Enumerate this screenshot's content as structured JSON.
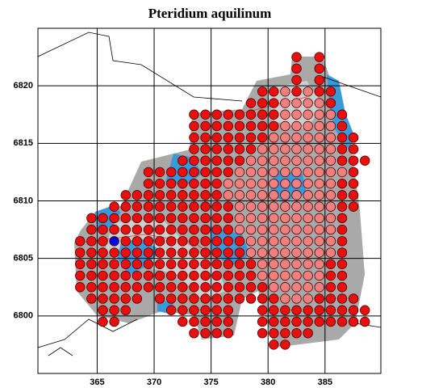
{
  "chart_data": {
    "type": "scatter",
    "title": "Pteridium aquilinum",
    "xlim": [
      359.8,
      389.9
    ],
    "ylim": [
      6795,
      6825
    ],
    "xticks": [
      365,
      370,
      375,
      380,
      385
    ],
    "yticks": [
      6800,
      6805,
      6810,
      6815,
      6820
    ],
    "grid": true,
    "series": [
      {
        "color": "#e8100f",
        "rows": [
          {
            "y": 6822.5,
            "x": [
              382.5,
              384.5
            ]
          },
          {
            "y": 6821.5,
            "x": [
              382.5,
              384.5
            ]
          },
          {
            "y": 6820.5,
            "x": [
              382.5,
              384.5
            ]
          },
          {
            "y": 6819.5,
            "x": [
              379.5,
              380.5,
              382.5,
              384.5,
              385.5
            ]
          },
          {
            "y": 6818.5,
            "x": [
              378.5,
              379.5,
              380.5,
              385.5
            ]
          },
          {
            "y": 6817.5,
            "x": [
              373.5,
              374.5,
              375.5,
              376.5,
              377.5,
              378.5,
              379.5,
              380.5,
              386.5
            ]
          },
          {
            "y": 6816.5,
            "x": [
              373.5,
              374.5,
              375.5,
              376.5,
              377.5,
              378.5,
              379.5,
              380.5,
              386.5
            ]
          },
          {
            "y": 6815.5,
            "x": [
              373.5,
              374.5,
              375.5,
              376.5,
              377.5,
              378.5,
              379.5,
              386.5,
              387.5
            ]
          },
          {
            "y": 6814.5,
            "x": [
              373.5,
              374.5,
              375.5,
              376.5,
              377.5,
              378.5,
              386.5,
              387.5
            ]
          },
          {
            "y": 6813.5,
            "x": [
              372.5,
              373.5,
              374.5,
              375.5,
              376.5,
              377.5,
              386.5,
              387.5,
              388.5
            ]
          },
          {
            "y": 6812.5,
            "x": [
              369.5,
              370.5,
              371.5,
              372.5,
              373.5,
              374.5,
              375.5,
              376.5,
              387.5
            ]
          },
          {
            "y": 6811.5,
            "x": [
              369.5,
              370.5,
              371.5,
              372.5,
              373.5,
              374.5,
              375.5,
              386.5,
              387.5
            ]
          },
          {
            "y": 6810.5,
            "x": [
              367.5,
              368.5,
              369.5,
              370.5,
              371.5,
              372.5,
              373.5,
              374.5,
              375.5,
              386.5,
              387.5
            ]
          },
          {
            "y": 6809.5,
            "x": [
              366.5,
              367.5,
              368.5,
              369.5,
              370.5,
              371.5,
              372.5,
              373.5,
              374.5,
              375.5,
              376.5,
              386.5,
              387.5
            ]
          },
          {
            "y": 6808.5,
            "x": [
              364.5,
              365.5,
              366.5,
              367.5,
              368.5,
              369.5,
              370.5,
              371.5,
              372.5,
              373.5,
              374.5,
              375.5,
              376.5,
              386.5
            ]
          },
          {
            "y": 6807.5,
            "x": [
              364.5,
              365.5,
              366.5,
              367.5,
              368.5,
              369.5,
              370.5,
              371.5,
              372.5,
              373.5,
              374.5,
              375.5,
              376.5,
              386.5
            ]
          },
          {
            "y": 6806.5,
            "x": [
              363.5,
              364.5,
              365.5,
              367.5,
              368.5,
              369.5,
              370.5,
              371.5,
              372.5,
              373.5,
              374.5,
              375.5,
              376.5,
              377.5,
              386.5
            ]
          },
          {
            "y": 6805.5,
            "x": [
              363.5,
              364.5,
              365.5,
              366.5,
              367.5,
              368.5,
              369.5,
              370.5,
              371.5,
              372.5,
              373.5,
              374.5,
              375.5,
              376.5,
              377.5,
              386.5
            ]
          },
          {
            "y": 6804.5,
            "x": [
              363.5,
              364.5,
              365.5,
              366.5,
              367.5,
              368.5,
              369.5,
              370.5,
              371.5,
              372.5,
              373.5,
              374.5,
              375.5,
              376.5,
              377.5,
              378.5,
              385.5,
              386.5
            ]
          },
          {
            "y": 6803.5,
            "x": [
              363.5,
              364.5,
              365.5,
              366.5,
              367.5,
              368.5,
              369.5,
              370.5,
              371.5,
              372.5,
              373.5,
              374.5,
              375.5,
              376.5,
              377.5,
              378.5,
              385.5,
              386.5
            ]
          },
          {
            "y": 6802.5,
            "x": [
              363.5,
              364.5,
              365.5,
              366.5,
              367.5,
              368.5,
              369.5,
              370.5,
              371.5,
              372.5,
              373.5,
              374.5,
              375.5,
              376.5,
              377.5,
              378.5,
              379.5,
              385.5,
              386.5
            ]
          },
          {
            "y": 6801.5,
            "x": [
              364.5,
              365.5,
              366.5,
              367.5,
              368.5,
              370.5,
              371.5,
              372.5,
              373.5,
              374.5,
              375.5,
              376.5,
              377.5,
              378.5,
              379.5,
              380.5,
              384.5,
              385.5,
              386.5,
              387.5
            ]
          },
          {
            "y": 6800.5,
            "x": [
              365.5,
              366.5,
              367.5,
              371.5,
              372.5,
              373.5,
              374.5,
              375.5,
              376.5,
              379.5,
              380.5,
              381.5,
              382.5,
              383.5,
              384.5,
              385.5,
              386.5,
              387.5,
              388.5
            ]
          },
          {
            "y": 6799.5,
            "x": [
              365.5,
              366.5,
              372.5,
              373.5,
              374.5,
              375.5,
              376.5,
              379.5,
              380.5,
              381.5,
              382.5,
              383.5,
              384.5,
              385.5,
              386.5,
              387.5,
              388.5
            ]
          },
          {
            "y": 6798.5,
            "x": [
              373.5,
              374.5,
              375.5,
              376.5,
              379.5,
              380.5,
              381.5,
              382.5,
              383.5
            ]
          },
          {
            "y": 6797.5,
            "x": [
              380.5,
              381.5
            ]
          }
        ]
      },
      {
        "color": "#f08080",
        "rows": [
          {
            "y": 6819.5,
            "x": [
              381.5,
              383.5
            ]
          },
          {
            "y": 6818.5,
            "x": [
              381.5,
              382.5,
              383.5,
              384.5
            ]
          },
          {
            "y": 6817.5,
            "x": [
              381.5,
              382.5,
              383.5,
              384.5,
              385.5
            ]
          },
          {
            "y": 6816.5,
            "x": [
              381.5,
              382.5,
              383.5,
              384.5,
              385.5
            ]
          },
          {
            "y": 6815.5,
            "x": [
              380.5,
              381.5,
              382.5,
              383.5,
              384.5,
              385.5
            ]
          },
          {
            "y": 6814.5,
            "x": [
              379.5,
              380.5,
              381.5,
              382.5,
              383.5,
              384.5,
              385.5
            ]
          },
          {
            "y": 6813.5,
            "x": [
              378.5,
              379.5,
              380.5,
              381.5,
              382.5,
              383.5,
              384.5,
              385.5
            ]
          },
          {
            "y": 6812.5,
            "x": [
              377.5,
              378.5,
              379.5,
              380.5,
              381.5,
              382.5,
              383.5,
              384.5,
              385.5,
              386.5
            ]
          },
          {
            "y": 6811.5,
            "x": [
              376.5,
              377.5,
              378.5,
              379.5,
              380.5,
              381.5,
              382.5,
              383.5,
              384.5,
              385.5
            ]
          },
          {
            "y": 6810.5,
            "x": [
              376.5,
              377.5,
              378.5,
              379.5,
              380.5,
              381.5,
              382.5,
              383.5,
              384.5,
              385.5
            ]
          },
          {
            "y": 6809.5,
            "x": [
              377.5,
              378.5,
              379.5,
              380.5,
              381.5,
              382.5,
              383.5,
              384.5,
              385.5
            ]
          },
          {
            "y": 6808.5,
            "x": [
              377.5,
              378.5,
              379.5,
              380.5,
              381.5,
              382.5,
              383.5,
              384.5,
              385.5
            ]
          },
          {
            "y": 6807.5,
            "x": [
              377.5,
              378.5,
              379.5,
              380.5,
              381.5,
              382.5,
              383.5,
              384.5,
              385.5
            ]
          },
          {
            "y": 6806.5,
            "x": [
              378.5,
              379.5,
              380.5,
              381.5,
              382.5,
              383.5,
              384.5,
              385.5
            ]
          },
          {
            "y": 6805.5,
            "x": [
              378.5,
              379.5,
              380.5,
              381.5,
              382.5,
              383.5,
              384.5,
              385.5
            ]
          },
          {
            "y": 6804.5,
            "x": [
              379.5,
              380.5,
              381.5,
              382.5,
              383.5,
              384.5
            ]
          },
          {
            "y": 6803.5,
            "x": [
              379.5,
              380.5,
              381.5,
              382.5,
              383.5,
              384.5
            ]
          },
          {
            "y": 6802.5,
            "x": [
              380.5,
              381.5,
              382.5,
              383.5,
              384.5
            ]
          },
          {
            "y": 6801.5,
            "x": [
              381.5,
              382.5,
              383.5
            ]
          }
        ]
      },
      {
        "color": "#0000e0",
        "rows": [
          {
            "y": 6806.5,
            "x": [
              366.5
            ]
          }
        ]
      }
    ]
  }
}
